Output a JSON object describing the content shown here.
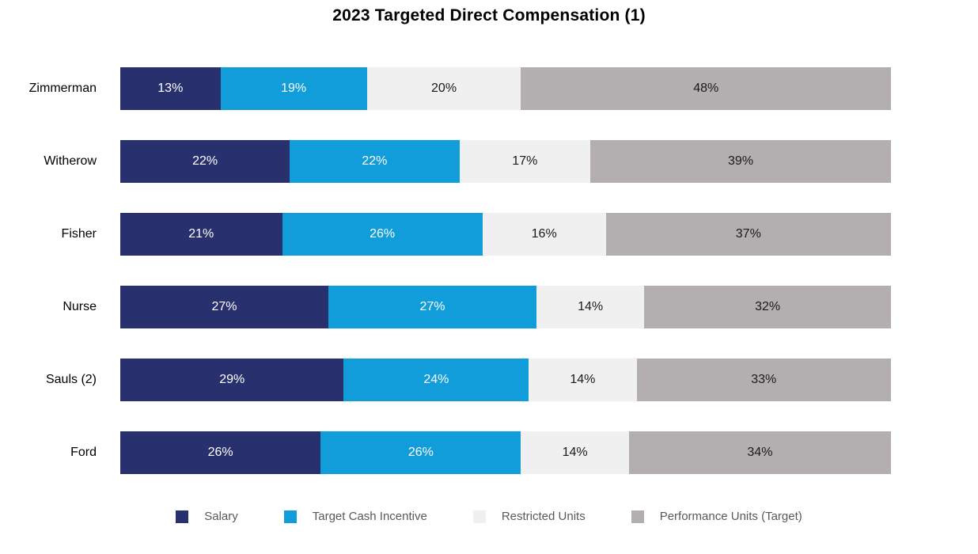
{
  "title": "2023 Targeted Direct Compensation (1)",
  "chart_data": {
    "type": "bar",
    "variant": "horizontal-stacked-100pct",
    "title": "2023 Targeted Direct Compensation (1)",
    "categories": [
      "Zimmerman",
      "Witherow",
      "Fisher",
      "Nurse",
      "Sauls (2)",
      "Ford"
    ],
    "series": [
      {
        "name": "Salary",
        "color": "#29306e",
        "label_color": "#ffffff",
        "values": [
          13,
          22,
          21,
          27,
          29,
          26
        ]
      },
      {
        "name": "Target Cash Incentive",
        "color": "#119dda",
        "label_color": "#ffffff",
        "values": [
          19,
          22,
          26,
          27,
          24,
          26
        ]
      },
      {
        "name": "Restricted Units",
        "color": "#f0f0f0",
        "label_color": "#1a1a1a",
        "values": [
          20,
          17,
          16,
          14,
          14,
          14
        ]
      },
      {
        "name": "Performance Units (Target)",
        "color": "#b3afb0",
        "label_color": "#1a1a1a",
        "values": [
          48,
          39,
          37,
          32,
          33,
          34
        ]
      }
    ],
    "value_suffix": "%",
    "xlim": [
      0,
      100
    ],
    "xlabel": "",
    "ylabel": "",
    "grid": false,
    "axis_lines": false,
    "legend_position": "bottom",
    "legend_text_color": "#595959"
  }
}
